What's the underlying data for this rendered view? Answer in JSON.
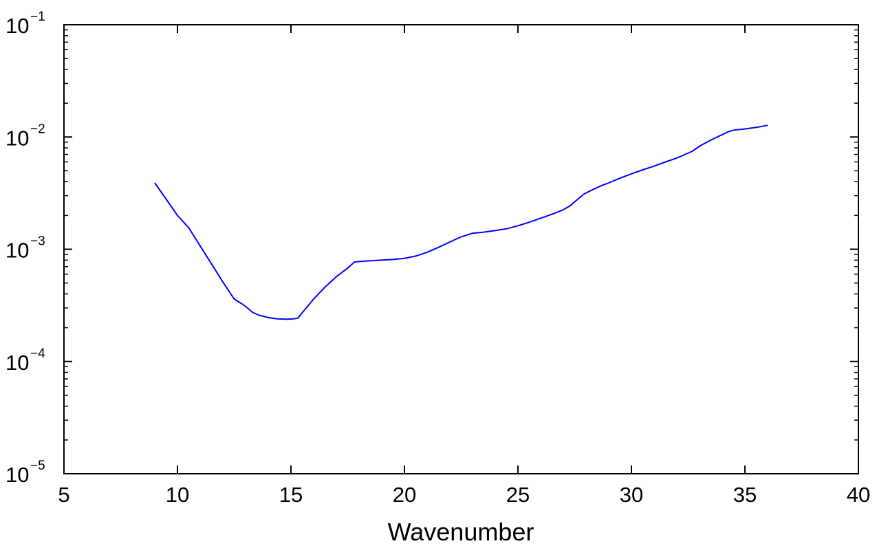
{
  "chart_data": {
    "type": "line",
    "title": "",
    "xlabel": "Wavenumber",
    "ylabel": "",
    "xlim": [
      5,
      40
    ],
    "ylim": [
      1e-05,
      0.1
    ],
    "yscale": "log",
    "grid": false,
    "x_ticks": [
      "5",
      "10",
      "15",
      "20",
      "25",
      "30",
      "35",
      "40"
    ],
    "y_ticks": [
      {
        "value": 1e-05,
        "base": "10",
        "exponent": "−5"
      },
      {
        "value": 0.0001,
        "base": "10",
        "exponent": "−4"
      },
      {
        "value": 0.001,
        "base": "10",
        "exponent": "−3"
      },
      {
        "value": 0.01,
        "base": "10",
        "exponent": "−2"
      },
      {
        "value": 0.1,
        "base": "10",
        "exponent": "−1"
      }
    ],
    "series": [
      {
        "color": "#0000ff",
        "x": [
          9,
          9.5,
          10,
          10.5,
          11,
          11.5,
          12,
          12.5,
          12.8,
          13,
          13.3,
          13.6,
          14,
          14.4,
          14.8,
          15.1,
          15.3,
          15.6,
          16,
          16.5,
          17,
          17.5,
          17.8,
          18.1,
          18.5,
          19,
          19.5,
          20,
          20.5,
          21,
          21.5,
          22,
          22.5,
          23,
          23.5,
          24,
          24.5,
          25,
          25.5,
          26,
          26.5,
          27,
          27.3,
          27.6,
          27.9,
          28.3,
          28.7,
          29,
          29.5,
          30,
          30.5,
          31,
          31.5,
          32,
          32.3,
          32.7,
          33,
          33.5,
          34,
          34.3,
          34.5,
          35,
          35.5,
          36
        ],
        "y": [
          0.0039,
          0.0028,
          0.002,
          0.00155,
          0.00107,
          0.00074,
          0.00051,
          0.00036,
          0.00033,
          0.00031,
          0.000275,
          0.000258,
          0.000246,
          0.00024,
          0.000238,
          0.00024,
          0.000243,
          0.000288,
          0.00036,
          0.00046,
          0.00057,
          0.00068,
          0.00077,
          0.00078,
          0.00079,
          0.0008,
          0.00081,
          0.00083,
          0.00087,
          0.00094,
          0.00104,
          0.00116,
          0.00129,
          0.00139,
          0.00142,
          0.00147,
          0.00152,
          0.00162,
          0.00174,
          0.00189,
          0.00205,
          0.00225,
          0.00244,
          0.00275,
          0.0031,
          0.0034,
          0.0037,
          0.0039,
          0.0043,
          0.0047,
          0.0051,
          0.0055,
          0.006,
          0.0065,
          0.0069,
          0.0075,
          0.0083,
          0.0094,
          0.0105,
          0.0112,
          0.0115,
          0.0118,
          0.0122,
          0.0127
        ]
      }
    ]
  }
}
